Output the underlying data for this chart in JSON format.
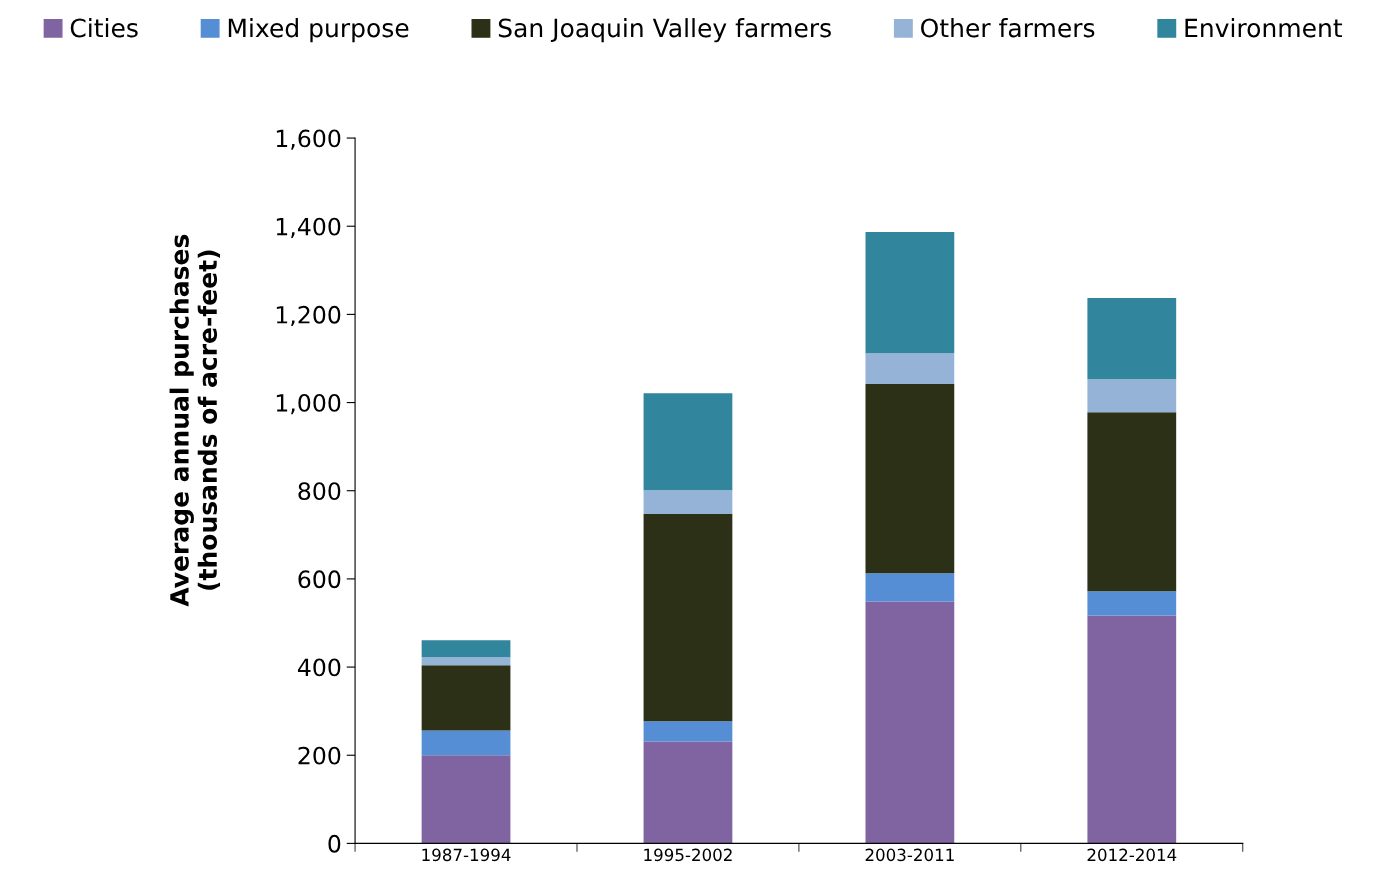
{
  "chart_data": {
    "type": "bar",
    "stacked": true,
    "ylabel": "Average annual purchases\n(thousands of acre-feet)",
    "categories": [
      "1987-1994",
      "1995-2002",
      "2003-2011",
      "2012-2014"
    ],
    "series": [
      {
        "name": "Cities",
        "color": "#8064a2",
        "values": [
          200,
          231,
          549,
          517
        ]
      },
      {
        "name": "Mixed purpose",
        "color": "#558ed5",
        "values": [
          56,
          46,
          64,
          55
        ]
      },
      {
        "name": "San Joaquin Valley farmers",
        "color": "#2b3016",
        "values": [
          148,
          470,
          429,
          406
        ]
      },
      {
        "name": "Other farmers",
        "color": "#95b3d7",
        "values": [
          18,
          54,
          70,
          75
        ]
      },
      {
        "name": "Environment",
        "color": "#31859c",
        "values": [
          39,
          220,
          275,
          184
        ]
      }
    ],
    "ylim": [
      0,
      1600
    ],
    "yticks": [
      {
        "value": 0,
        "label": "0"
      },
      {
        "value": 200,
        "label": "200"
      },
      {
        "value": 400,
        "label": "400"
      },
      {
        "value": 600,
        "label": "600"
      },
      {
        "value": 800,
        "label": "800"
      },
      {
        "value": 1000,
        "label": "1,000"
      },
      {
        "value": 1200,
        "label": "1,200"
      },
      {
        "value": 1400,
        "label": "1,400"
      },
      {
        "value": 1600,
        "label": "1,600"
      }
    ],
    "grid": false,
    "legend": "top"
  }
}
